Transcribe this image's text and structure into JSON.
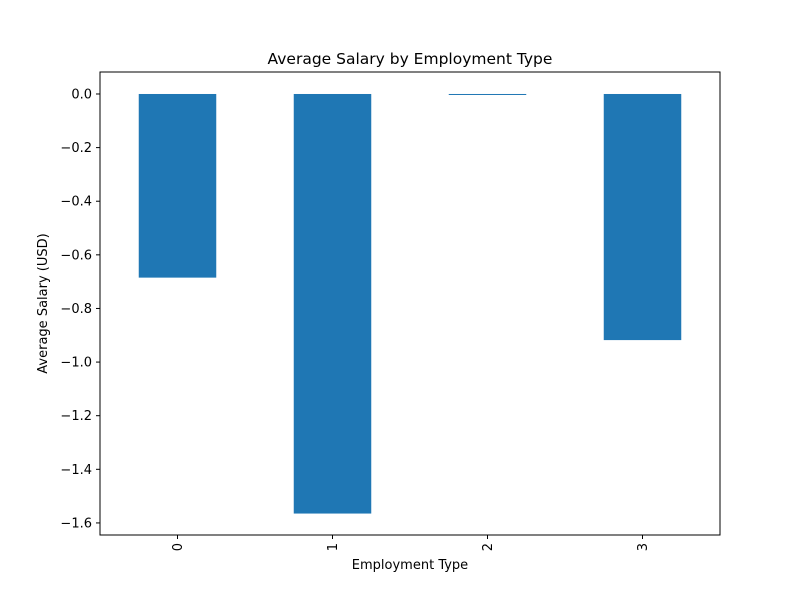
{
  "chart_data": {
    "type": "bar",
    "title": "Average Salary by Employment Type",
    "xlabel": "Employment Type",
    "ylabel": "Average Salary (USD)",
    "categories": [
      "0",
      "1",
      "2",
      "3"
    ],
    "values": [
      -0.685,
      -1.565,
      -0.002,
      -0.918
    ],
    "ylim": [
      -1.645,
      0.082
    ],
    "yticks": [
      0.0,
      -0.2,
      -0.4,
      -0.6,
      -0.8,
      -1.0,
      -1.2,
      -1.4,
      -1.6
    ],
    "ytick_labels": [
      "0.0",
      "−0.2",
      "−0.4",
      "−0.6",
      "−0.8",
      "−1.0",
      "−1.2",
      "−1.4",
      "−1.6"
    ],
    "xtick_rotation": "vertical",
    "grid": false,
    "legend": "none",
    "bar_color": "#1f77b4"
  }
}
